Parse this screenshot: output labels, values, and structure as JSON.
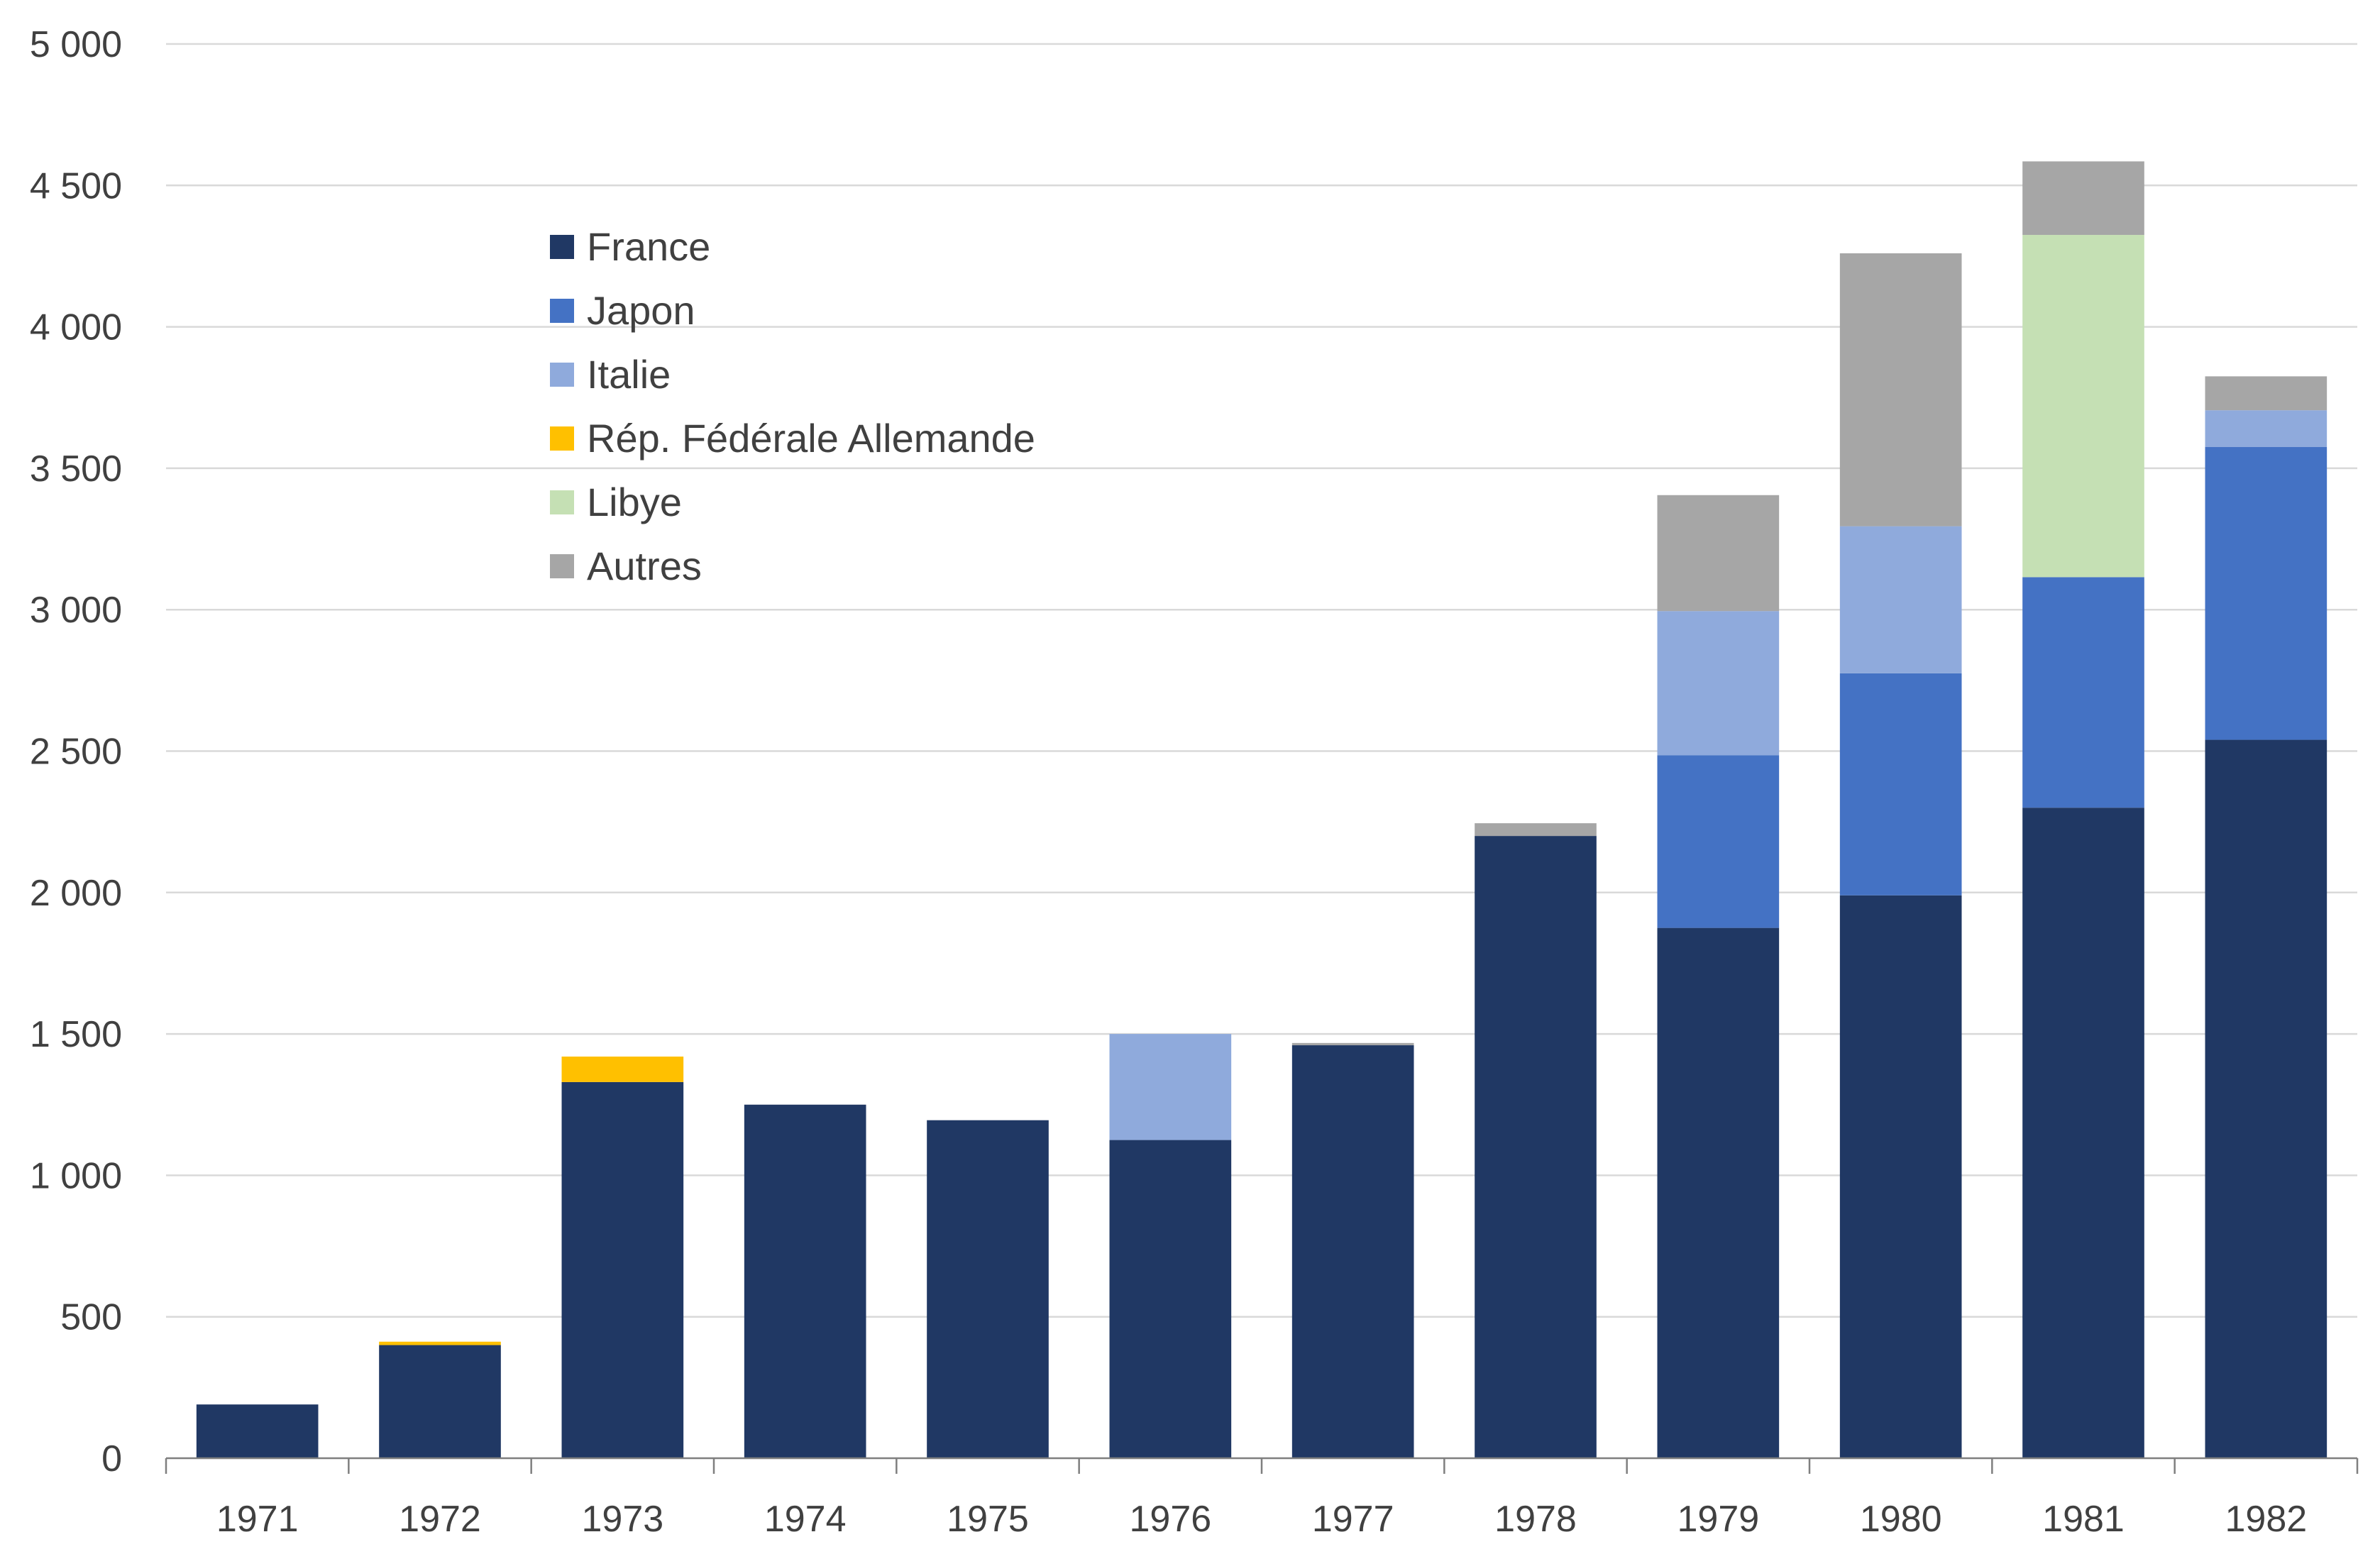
{
  "chart_data": {
    "type": "bar",
    "stacked": true,
    "title": "",
    "xlabel": "",
    "ylabel": "",
    "ylim": [
      0,
      5000
    ],
    "yticks": [
      0,
      500,
      1000,
      1500,
      2000,
      2500,
      3000,
      3500,
      4000,
      4500,
      5000
    ],
    "ytick_labels": [
      "0",
      "500",
      "1 000",
      "1 500",
      "2 000",
      "2 500",
      "3 000",
      "3 500",
      "4 000",
      "4 500",
      "5 000"
    ],
    "categories": [
      "1971",
      "1972",
      "1973",
      "1974",
      "1975",
      "1976",
      "1977",
      "1978",
      "1979",
      "1980",
      "1981",
      "1982"
    ],
    "grid": true,
    "legend_position": "upper-left",
    "series": [
      {
        "name": "France",
        "color": "#203864",
        "values": [
          190,
          400,
          1330,
          1250,
          1195,
          1125,
          1460,
          2200,
          1875,
          1990,
          2300,
          2540
        ]
      },
      {
        "name": "Japon",
        "color": "#4472c4",
        "values": [
          0,
          0,
          0,
          0,
          0,
          0,
          0,
          0,
          610,
          785,
          815,
          1035
        ]
      },
      {
        "name": "Italie",
        "color": "#8faadc",
        "values": [
          0,
          0,
          0,
          0,
          0,
          375,
          0,
          0,
          510,
          520,
          0,
          130
        ]
      },
      {
        "name": "Rép. Fédérale Allemande",
        "color": "#ffc000",
        "values": [
          0,
          12,
          90,
          0,
          0,
          0,
          0,
          0,
          0,
          0,
          0,
          0
        ]
      },
      {
        "name": "Libye",
        "color": "#c5e0b4",
        "values": [
          0,
          0,
          0,
          0,
          0,
          0,
          0,
          0,
          0,
          0,
          1210,
          0
        ]
      },
      {
        "name": "Autres",
        "color": "#a6a6a6",
        "values": [
          0,
          0,
          0,
          0,
          0,
          0,
          8,
          45,
          410,
          965,
          260,
          120
        ]
      }
    ]
  }
}
